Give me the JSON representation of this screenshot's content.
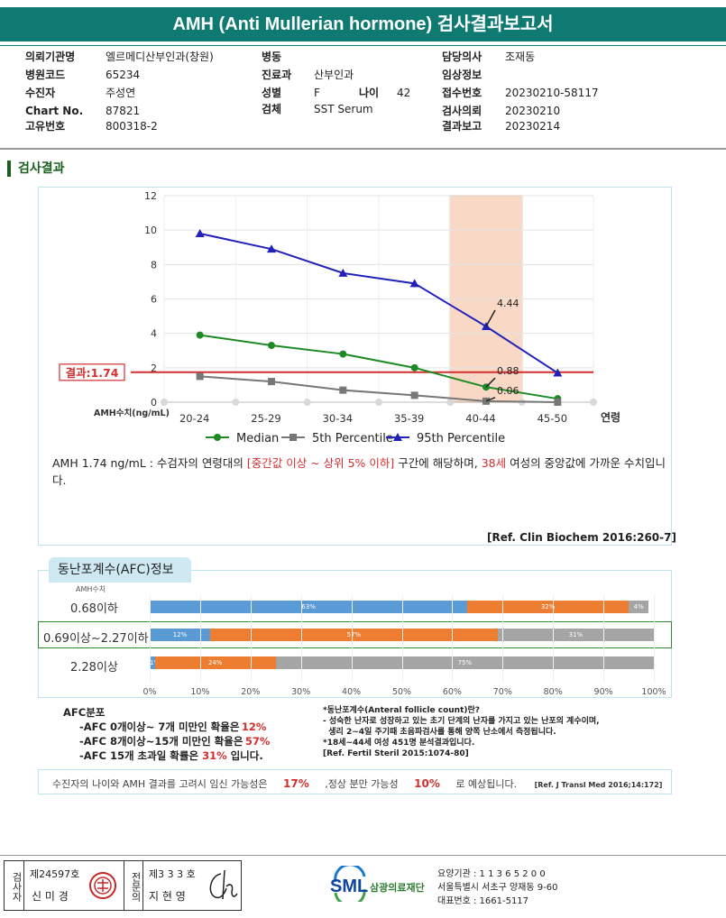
{
  "header": {
    "title": "AMH (Anti Mullerian hormone) 검사결과보고서"
  },
  "info": {
    "col1": [
      {
        "k": "의뢰기관명",
        "v": "엘르메디산부인과(창원)"
      },
      {
        "k": "병원코드",
        "v": "65234"
      },
      {
        "k": "수진자",
        "v": "주성연"
      },
      {
        "k": "Chart No.",
        "v": "87821"
      },
      {
        "k": "고유번호",
        "v": "800318-2"
      }
    ],
    "col2": [
      {
        "k": "병동",
        "v": ""
      },
      {
        "k": "진료과",
        "v": "산부인과"
      },
      {
        "k": "성별",
        "v": "F"
      },
      {
        "k": "검체",
        "v": "SST Serum"
      }
    ],
    "age": {
      "k": "나이",
      "v": "42"
    },
    "col3": [
      {
        "k": "담당의사",
        "v": "조재동"
      },
      {
        "k": "임상정보",
        "v": ""
      },
      {
        "k": "접수번호",
        "v": "20230210-58117"
      },
      {
        "k": "검사의뢰",
        "v": "20230210"
      },
      {
        "k": "결과보고",
        "v": "20230214"
      }
    ]
  },
  "section_title": "검사결과",
  "chart_data": {
    "type": "line",
    "categories": [
      "20-24",
      "25-29",
      "30-34",
      "35-39",
      "40-44",
      "45-50"
    ],
    "xlabel": "연령",
    "ylabel": "AMH수치(ng/mL)",
    "ylim": [
      0,
      12
    ],
    "yticks": [
      0,
      2,
      4,
      6,
      8,
      10,
      12
    ],
    "series": [
      {
        "name": "Median",
        "values": [
          3.9,
          3.3,
          2.8,
          2.0,
          0.88,
          0.2
        ],
        "color": "#1e8a24"
      },
      {
        "name": "5th Percentile",
        "values": [
          1.5,
          1.2,
          0.7,
          0.4,
          0.06,
          0.0
        ],
        "color": "#777777"
      },
      {
        "name": "95th Percentile",
        "values": [
          9.8,
          8.9,
          7.5,
          6.9,
          4.4,
          1.7
        ],
        "color": "#2222bb"
      }
    ],
    "annotations": [
      "4.44",
      "0.88",
      "0.06"
    ],
    "result": {
      "label": "결과:1.74",
      "value": 1.74,
      "color": "#d32f2f"
    },
    "highlight_category": "40-44",
    "grid": true,
    "legend": "bottom"
  },
  "comment": {
    "p1": "AMH  1.74 ng/mL : 수검자의 연령대의 ",
    "r1": "[중간값 이상 ~ 상위 5% 이하]",
    "p2": " 구간에 해당하며, ",
    "r2": "38세",
    "p3": " 여성의 중앙값에 가까운 수치입니다."
  },
  "ref1": "[Ref. Clin Biochem 2016:260-7]",
  "afc": {
    "tab": "동난포계수(AFC)정보",
    "amh_label": "AMH수치",
    "rows": [
      {
        "label": "0.68이하",
        "segs": [
          {
            "v": 63,
            "t": "63%"
          },
          {
            "v": 32,
            "t": "32%"
          },
          {
            "v": 4,
            "t": "4%"
          }
        ]
      },
      {
        "label": "0.69이상~2.27이하",
        "segs": [
          {
            "v": 12,
            "t": "12%"
          },
          {
            "v": 57,
            "t": "57%"
          },
          {
            "v": 31,
            "t": "31%"
          }
        ]
      },
      {
        "label": "2.28이상",
        "segs": [
          {
            "v": 1,
            "t": "1%"
          },
          {
            "v": 24,
            "t": "24%"
          },
          {
            "v": 75,
            "t": "75%"
          }
        ]
      }
    ],
    "colors": [
      "#5b9bd5",
      "#ed7d31",
      "#a5a5a5"
    ],
    "xticks": [
      "0%",
      "10%",
      "20%",
      "30%",
      "40%",
      "50%",
      "60%",
      "70%",
      "80%",
      "90%",
      "100%"
    ],
    "dist_title": "AFC분포",
    "dist": [
      {
        "t": "-AFC  0개이상~ 7개 미만인 확율은",
        "v": "12%"
      },
      {
        "t": "-AFC  8개이상~15개 미만인 확율은",
        "v": "57%"
      },
      {
        "t": "-AFC  15개 초과일 확률은",
        "v": "31%",
        "s": " 입니다."
      }
    ],
    "notes": [
      "*동난포계수(Anteral follicle count)란?",
      "- 성숙한 난자로 성장하고 있는 초기 단계의 난자를 가지고 있는 난포의 계수이며,",
      "  생리 2~4일 주기때 초음파검사를 통해 양쪽 난소에서 측정됩니다.",
      "*18세~44세 여성 451명 분석결과입니다.",
      "[Ref. Fertil Steril 2015:1074-80]"
    ]
  },
  "bottom": {
    "p1": "수진자의 나이와 AMH 결과를 고려시 임신 가능성은",
    "v1": "17%",
    "p2": ",정상 분만 가능성",
    "v2": "10%",
    "p3": "로 예상됩니다.",
    "ref": "[Ref. J Transl Med 2016;14:172]"
  },
  "footer": {
    "tester_label": "검사자",
    "tester_no": "제24597호",
    "tester_name": "신 미 경",
    "approver_label": "전문의",
    "approver_no": "제3 3 3 호",
    "approver_name": "지 현 영",
    "logo": "SML",
    "org": "삼광의료재단",
    "code": "요양기관 : 1 1 3 6 5 2 0 0",
    "addr": "서울특별시 서초구 양재동 9-60",
    "phone": "대표번호 : 1661-5117"
  }
}
